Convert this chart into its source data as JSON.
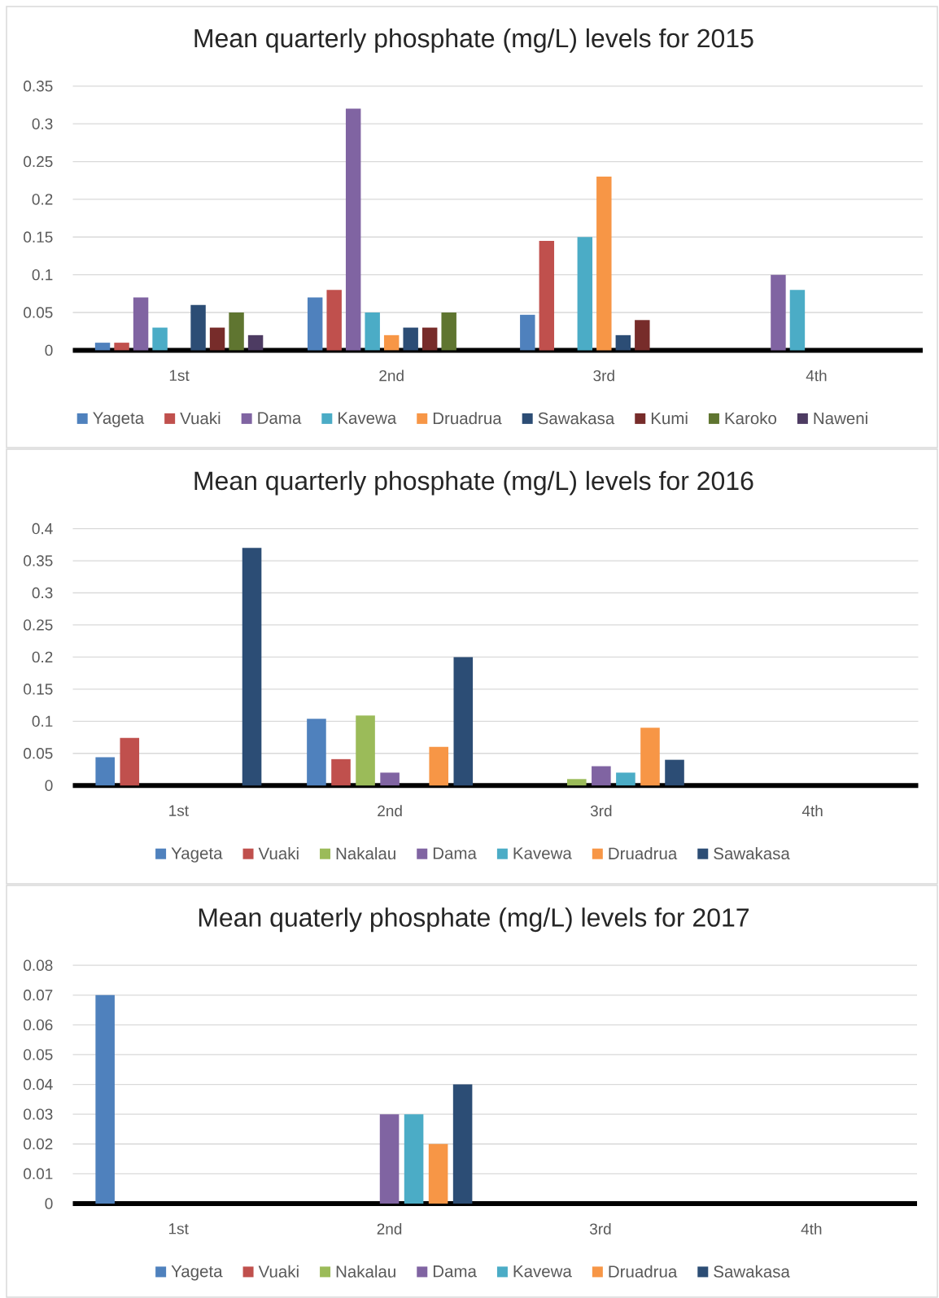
{
  "chart_data": [
    {
      "type": "bar",
      "title": "Mean quarterly phosphate (mg/L) levels for 2015",
      "categories": [
        "1st",
        "2nd",
        "3rd",
        "4th"
      ],
      "series": [
        {
          "name": "Yageta",
          "color": "#4f81bd",
          "values": [
            0.01,
            0.07,
            0.047,
            null
          ]
        },
        {
          "name": "Vuaki",
          "color": "#c0504d",
          "values": [
            0.01,
            0.08,
            0.145,
            null
          ]
        },
        {
          "name": "Dama",
          "color": "#8064a2",
          "values": [
            0.07,
            0.32,
            null,
            0.1
          ]
        },
        {
          "name": "Kavewa",
          "color": "#4bacc6",
          "values": [
            0.03,
            0.05,
            0.15,
            0.08
          ]
        },
        {
          "name": "Druadrua",
          "color": "#f79646",
          "values": [
            null,
            0.02,
            0.23,
            null
          ]
        },
        {
          "name": "Sawakasa",
          "color": "#2c4d75",
          "values": [
            0.06,
            0.03,
            0.02,
            null
          ]
        },
        {
          "name": "Kumi",
          "color": "#772c2a",
          "values": [
            0.03,
            0.03,
            0.04,
            null
          ]
        },
        {
          "name": "Karoko",
          "color": "#5f7530",
          "values": [
            0.05,
            0.05,
            null,
            null
          ]
        },
        {
          "name": "Naweni",
          "color": "#4d3b62",
          "values": [
            0.02,
            null,
            null,
            null
          ]
        }
      ],
      "ylim": [
        0,
        0.35
      ],
      "yticks": [
        0,
        0.05,
        0.1,
        0.15,
        0.2,
        0.25,
        0.3,
        0.35
      ],
      "grid": "y",
      "legend": "bottom"
    },
    {
      "type": "bar",
      "title": "Mean quarterly phosphate (mg/L) levels for 2016",
      "categories": [
        "1st",
        "2nd",
        "3rd",
        "4th"
      ],
      "series": [
        {
          "name": "Yageta",
          "color": "#4f81bd",
          "values": [
            0.044,
            0.104,
            null,
            null
          ]
        },
        {
          "name": "Vuaki",
          "color": "#c0504d",
          "values": [
            0.074,
            0.041,
            null,
            null
          ]
        },
        {
          "name": "Nakalau",
          "color": "#9bbb59",
          "values": [
            null,
            0.109,
            0.01,
            null
          ]
        },
        {
          "name": "Dama",
          "color": "#8064a2",
          "values": [
            null,
            0.02,
            0.03,
            null
          ]
        },
        {
          "name": "Kavewa",
          "color": "#4bacc6",
          "values": [
            null,
            null,
            0.02,
            null
          ]
        },
        {
          "name": "Druadrua",
          "color": "#f79646",
          "values": [
            null,
            0.06,
            0.09,
            null
          ]
        },
        {
          "name": "Sawakasa",
          "color": "#2c4d75",
          "values": [
            0.37,
            0.2,
            0.04,
            null
          ]
        }
      ],
      "ylim": [
        0,
        0.4
      ],
      "yticks": [
        0,
        0.05,
        0.1,
        0.15,
        0.2,
        0.25,
        0.3,
        0.35,
        0.4
      ],
      "grid": "y",
      "legend": "bottom"
    },
    {
      "type": "bar",
      "title": "Mean quaterly phosphate (mg/L) levels for 2017",
      "categories": [
        "1st",
        "2nd",
        "3rd",
        "4th"
      ],
      "series": [
        {
          "name": "Yageta",
          "color": "#4f81bd",
          "values": [
            0.07,
            null,
            null,
            null
          ]
        },
        {
          "name": "Vuaki",
          "color": "#c0504d",
          "values": [
            null,
            null,
            null,
            null
          ]
        },
        {
          "name": "Nakalau",
          "color": "#9bbb59",
          "values": [
            null,
            null,
            null,
            null
          ]
        },
        {
          "name": "Dama",
          "color": "#8064a2",
          "values": [
            null,
            0.03,
            null,
            null
          ]
        },
        {
          "name": "Kavewa",
          "color": "#4bacc6",
          "values": [
            null,
            0.03,
            null,
            null
          ]
        },
        {
          "name": "Druadrua",
          "color": "#f79646",
          "values": [
            null,
            0.02,
            null,
            null
          ]
        },
        {
          "name": "Sawakasa",
          "color": "#2c4d75",
          "values": [
            null,
            0.04,
            null,
            null
          ]
        }
      ],
      "ylim": [
        0,
        0.08
      ],
      "yticks": [
        0,
        0.01,
        0.02,
        0.03,
        0.04,
        0.05,
        0.06,
        0.07,
        0.08
      ],
      "grid": "y",
      "legend": "bottom"
    }
  ]
}
